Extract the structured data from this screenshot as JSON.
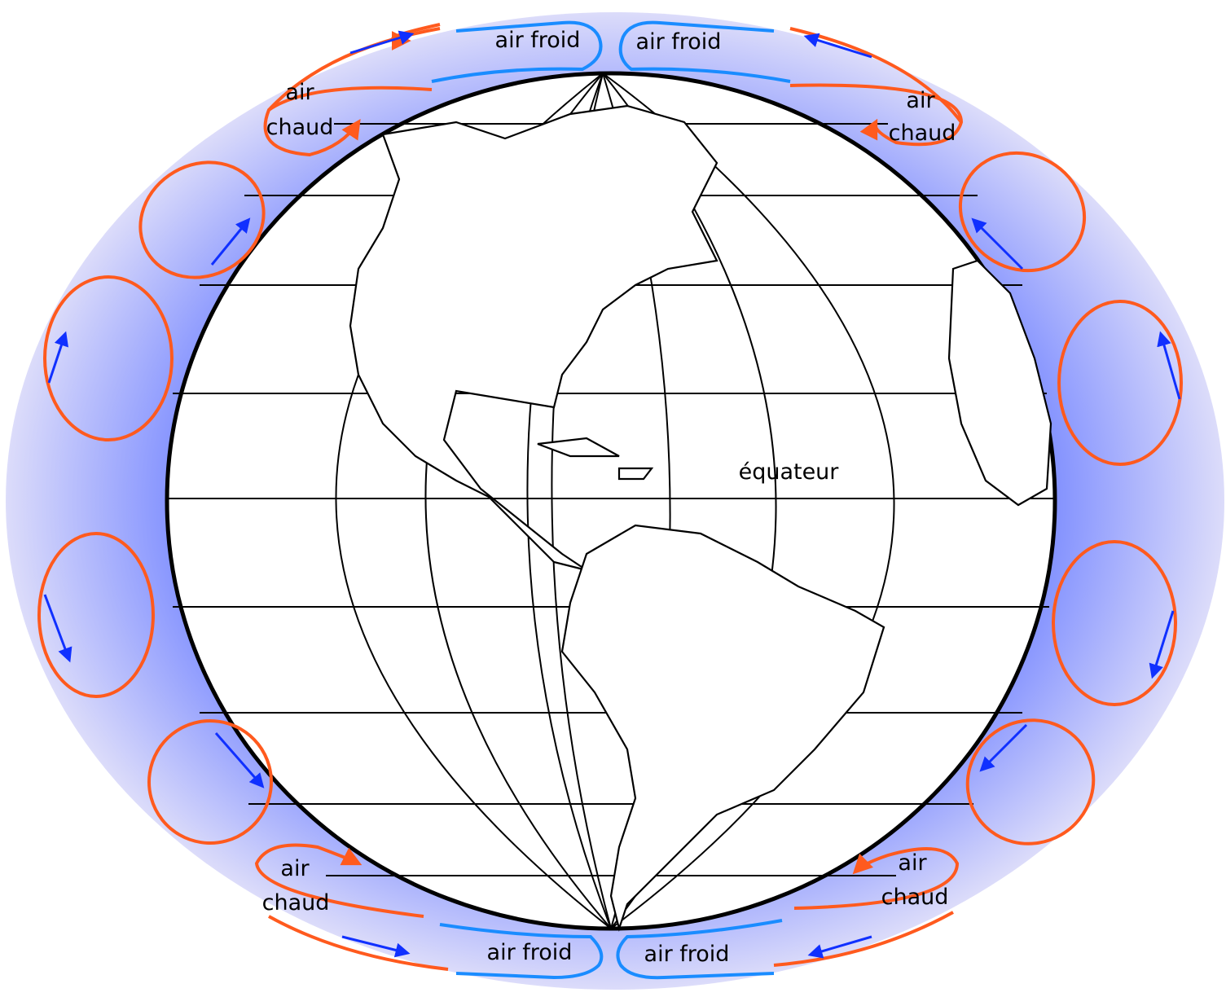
{
  "cold_labels": [
    "air froid",
    "air froid",
    "air froid",
    "air froid"
  ],
  "warm_labels": [
    [
      "air",
      "chaud"
    ],
    [
      "air",
      "chaud"
    ],
    [
      "air",
      "chaud"
    ],
    [
      "air",
      "chaud"
    ]
  ],
  "equator_label": "équateur"
}
